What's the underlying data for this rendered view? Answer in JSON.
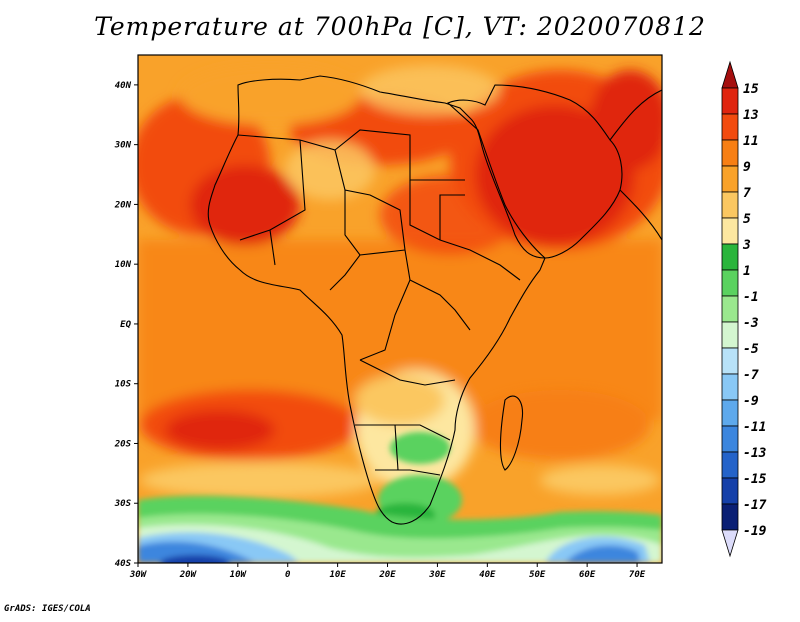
{
  "title": "Temperature at 700hPa [C], VT: 2020070812",
  "credit": "GrADS: IGES/COLA",
  "map": {
    "lon_range": [
      -30,
      75
    ],
    "lat_range": [
      -40,
      45
    ],
    "lat_ticks": [
      {
        "lat": 40,
        "label": "40N"
      },
      {
        "lat": 30,
        "label": "30N"
      },
      {
        "lat": 20,
        "label": "20N"
      },
      {
        "lat": 10,
        "label": "10N"
      },
      {
        "lat": 0,
        "label": "EQ"
      },
      {
        "lat": -10,
        "label": "10S"
      },
      {
        "lat": -20,
        "label": "20S"
      },
      {
        "lat": -30,
        "label": "30S"
      },
      {
        "lat": -40,
        "label": "40S"
      }
    ],
    "lon_ticks": [
      {
        "lon": -30,
        "label": "30W"
      },
      {
        "lon": -20,
        "label": "20W"
      },
      {
        "lon": -10,
        "label": "10W"
      },
      {
        "lon": 0,
        "label": "0"
      },
      {
        "lon": 10,
        "label": "10E"
      },
      {
        "lon": 20,
        "label": "20E"
      },
      {
        "lon": 30,
        "label": "30E"
      },
      {
        "lon": 40,
        "label": "40E"
      },
      {
        "lon": 50,
        "label": "50E"
      },
      {
        "lon": 60,
        "label": "60E"
      },
      {
        "lon": 70,
        "label": "70E"
      }
    ]
  },
  "colorbar": {
    "labels": [
      "15",
      "13",
      "11",
      "9",
      "7",
      "5",
      "3",
      "1",
      "-1",
      "-3",
      "-5",
      "-7",
      "-9",
      "-11",
      "-13",
      "-15",
      "-17",
      "-19"
    ],
    "colors": [
      "#a50f0f",
      "#e0250f",
      "#f24b0f",
      "#f77f14",
      "#f9a22a",
      "#fbc761",
      "#fde7a0",
      "#2ab53c",
      "#5ad25f",
      "#9ae88e",
      "#d4f6d0",
      "#b8e2f8",
      "#89c8f5",
      "#5ea9ec",
      "#3c86de",
      "#2463c9",
      "#1540a9",
      "#0a1f74",
      "#dcdcfa"
    ]
  }
}
